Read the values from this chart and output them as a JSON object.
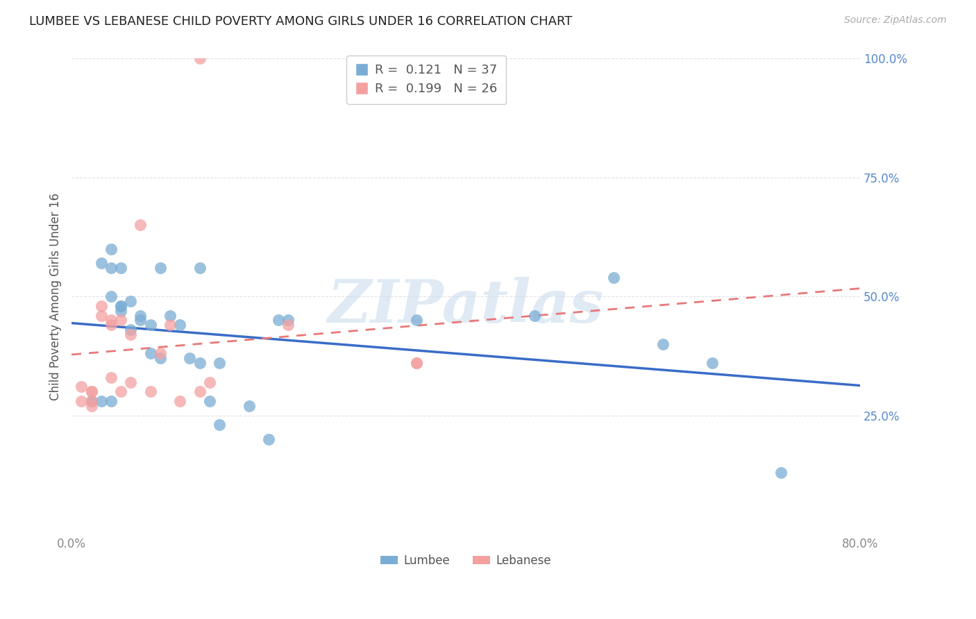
{
  "title": "LUMBEE VS LEBANESE CHILD POVERTY AMONG GIRLS UNDER 16 CORRELATION CHART",
  "source": "Source: ZipAtlas.com",
  "ylabel": "Child Poverty Among Girls Under 16",
  "watermark": "ZIPatlas",
  "xlim": [
    0.0,
    0.8
  ],
  "ylim": [
    0.0,
    1.0
  ],
  "xticks": [
    0.0,
    0.1,
    0.2,
    0.3,
    0.4,
    0.5,
    0.6,
    0.7,
    0.8
  ],
  "xticklabels": [
    "0.0%",
    "",
    "",
    "",
    "",
    "",
    "",
    "",
    "80.0%"
  ],
  "yticks": [
    0.0,
    0.25,
    0.5,
    0.75,
    1.0
  ],
  "yticklabels": [
    "",
    "25.0%",
    "50.0%",
    "75.0%",
    "100.0%"
  ],
  "lumbee_R": 0.121,
  "lumbee_N": 37,
  "lebanese_R": 0.199,
  "lebanese_N": 26,
  "lumbee_color": "#7AADD4",
  "lebanese_color": "#F4A0A0",
  "lumbee_trend_color": "#3A6CC8",
  "lebanese_trend_color": "#E87878",
  "lumbee_x": [
    0.02,
    0.03,
    0.04,
    0.04,
    0.04,
    0.05,
    0.05,
    0.05,
    0.05,
    0.06,
    0.06,
    0.07,
    0.07,
    0.08,
    0.08,
    0.09,
    0.09,
    0.1,
    0.11,
    0.12,
    0.13,
    0.13,
    0.14,
    0.15,
    0.15,
    0.18,
    0.2,
    0.21,
    0.22,
    0.35,
    0.47,
    0.55,
    0.6,
    0.65,
    0.72,
    0.03,
    0.04
  ],
  "lumbee_y": [
    0.28,
    0.57,
    0.6,
    0.56,
    0.5,
    0.56,
    0.48,
    0.48,
    0.47,
    0.49,
    0.43,
    0.45,
    0.46,
    0.44,
    0.38,
    0.37,
    0.56,
    0.46,
    0.44,
    0.37,
    0.36,
    0.56,
    0.28,
    0.36,
    0.23,
    0.27,
    0.2,
    0.45,
    0.45,
    0.45,
    0.46,
    0.54,
    0.4,
    0.36,
    0.13,
    0.28,
    0.28
  ],
  "lebanese_x": [
    0.01,
    0.01,
    0.02,
    0.02,
    0.02,
    0.02,
    0.03,
    0.03,
    0.04,
    0.04,
    0.04,
    0.05,
    0.05,
    0.06,
    0.06,
    0.07,
    0.08,
    0.09,
    0.1,
    0.11,
    0.13,
    0.14,
    0.22,
    0.35,
    0.35,
    0.13
  ],
  "lebanese_y": [
    0.31,
    0.28,
    0.3,
    0.3,
    0.28,
    0.27,
    0.48,
    0.46,
    0.45,
    0.44,
    0.33,
    0.45,
    0.3,
    0.42,
    0.32,
    0.65,
    0.3,
    0.38,
    0.44,
    0.28,
    0.3,
    0.32,
    0.44,
    0.36,
    0.36,
    1.0
  ],
  "bg_color": "#FFFFFF",
  "grid_color": "#E0E0E8",
  "ytick_color": "#5588CC",
  "xtick_color": "#888888",
  "legend_R_color": "#5588CC",
  "legend_N_lumbee_color": "#3A6CC8",
  "legend_N_lebanese_color": "#E87878"
}
